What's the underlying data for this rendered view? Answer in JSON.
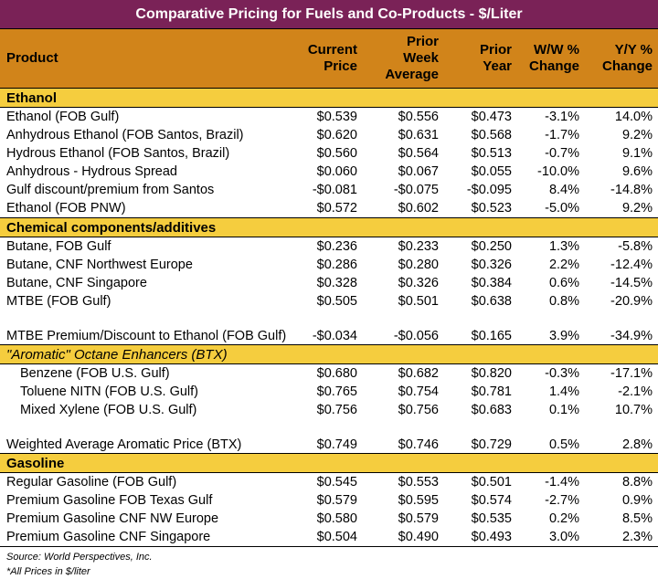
{
  "title": "Comparative Pricing for Fuels and Co-Products - $/Liter",
  "colors": {
    "title_bg": "#7a2257",
    "header_bg": "#d1841a",
    "section_bg": "#f5cd3e"
  },
  "headers": [
    "Product",
    "Current Price",
    "Prior Week Average",
    "Prior Year",
    "W/W % Change",
    "Y/Y % Change"
  ],
  "sections": [
    {
      "name": "Ethanol",
      "italic": false,
      "rows": [
        {
          "product": "Ethanol (FOB Gulf)",
          "values": [
            "$0.539",
            "$0.556",
            "$0.473",
            "-3.1%",
            "14.0%"
          ]
        },
        {
          "product": "Anhydrous Ethanol (FOB Santos, Brazil)",
          "values": [
            "$0.620",
            "$0.631",
            "$0.568",
            "-1.7%",
            "9.2%"
          ]
        },
        {
          "product": "Hydrous Ethanol (FOB Santos, Brazil)",
          "values": [
            "$0.560",
            "$0.564",
            "$0.513",
            "-0.7%",
            "9.1%"
          ]
        },
        {
          "product": "Anhydrous - Hydrous Spread",
          "values": [
            "$0.060",
            "$0.067",
            "$0.055",
            "-10.0%",
            "9.6%"
          ]
        },
        {
          "product": "Gulf discount/premium from Santos",
          "values": [
            "-$0.081",
            "-$0.075",
            "-$0.095",
            "8.4%",
            "-14.8%"
          ]
        },
        {
          "product": "Ethanol (FOB PNW)",
          "values": [
            "$0.572",
            "$0.602",
            "$0.523",
            "-5.0%",
            "9.2%"
          ]
        }
      ]
    },
    {
      "name": "Chemical components/additives",
      "italic": false,
      "rows": [
        {
          "product": "Butane, FOB Gulf",
          "values": [
            "$0.236",
            "$0.233",
            "$0.250",
            "1.3%",
            "-5.8%"
          ]
        },
        {
          "product": "Butane, CNF Northwest Europe",
          "values": [
            "$0.286",
            "$0.280",
            "$0.326",
            "2.2%",
            "-12.4%"
          ]
        },
        {
          "product": "Butane, CNF Singapore",
          "values": [
            "$0.328",
            "$0.326",
            "$0.384",
            "0.6%",
            "-14.5%"
          ]
        },
        {
          "product": "MTBE (FOB Gulf)",
          "values": [
            "$0.505",
            "$0.501",
            "$0.638",
            "0.8%",
            "-20.9%"
          ]
        },
        {
          "product": "MTBE Premium/Discount to Ethanol (FOB Gulf)",
          "values": [
            "-$0.034",
            "-$0.056",
            "$0.165",
            "3.9%",
            "-34.9%"
          ],
          "tall": true
        }
      ]
    },
    {
      "name": "\"Aromatic\" Octane Enhancers (BTX)",
      "italic": true,
      "rows": [
        {
          "product": "Benzene (FOB U.S. Gulf)",
          "values": [
            "$0.680",
            "$0.682",
            "$0.820",
            "-0.3%",
            "-17.1%"
          ],
          "indent": true
        },
        {
          "product": "Toluene NITN (FOB U.S. Gulf)",
          "values": [
            "$0.765",
            "$0.754",
            "$0.781",
            "1.4%",
            "-2.1%"
          ],
          "indent": true
        },
        {
          "product": "Mixed Xylene (FOB U.S. Gulf)",
          "values": [
            "$0.756",
            "$0.756",
            "$0.683",
            "0.1%",
            "10.7%"
          ],
          "indent": true
        },
        {
          "product": "Weighted Average Aromatic Price (BTX)",
          "values": [
            "$0.749",
            "$0.746",
            "$0.729",
            "0.5%",
            "2.8%"
          ],
          "tall": true,
          "hang": true
        }
      ]
    },
    {
      "name": "Gasoline",
      "italic": false,
      "rows": [
        {
          "product": "Regular Gasoline (FOB Gulf)",
          "values": [
            "$0.545",
            "$0.553",
            "$0.501",
            "-1.4%",
            "8.8%"
          ]
        },
        {
          "product": "Premium Gasoline FOB Texas Gulf",
          "values": [
            "$0.579",
            "$0.595",
            "$0.574",
            "-2.7%",
            "0.9%"
          ]
        },
        {
          "product": "Premium Gasoline CNF NW Europe",
          "values": [
            "$0.580",
            "$0.579",
            "$0.535",
            "0.2%",
            "8.5%"
          ]
        },
        {
          "product": "Premium Gasoline CNF Singapore",
          "values": [
            "$0.504",
            "$0.490",
            "$0.493",
            "3.0%",
            "2.3%"
          ]
        }
      ]
    }
  ],
  "notes": [
    "Source: World Perspectives, Inc.",
    "*All Prices in $/liter"
  ]
}
